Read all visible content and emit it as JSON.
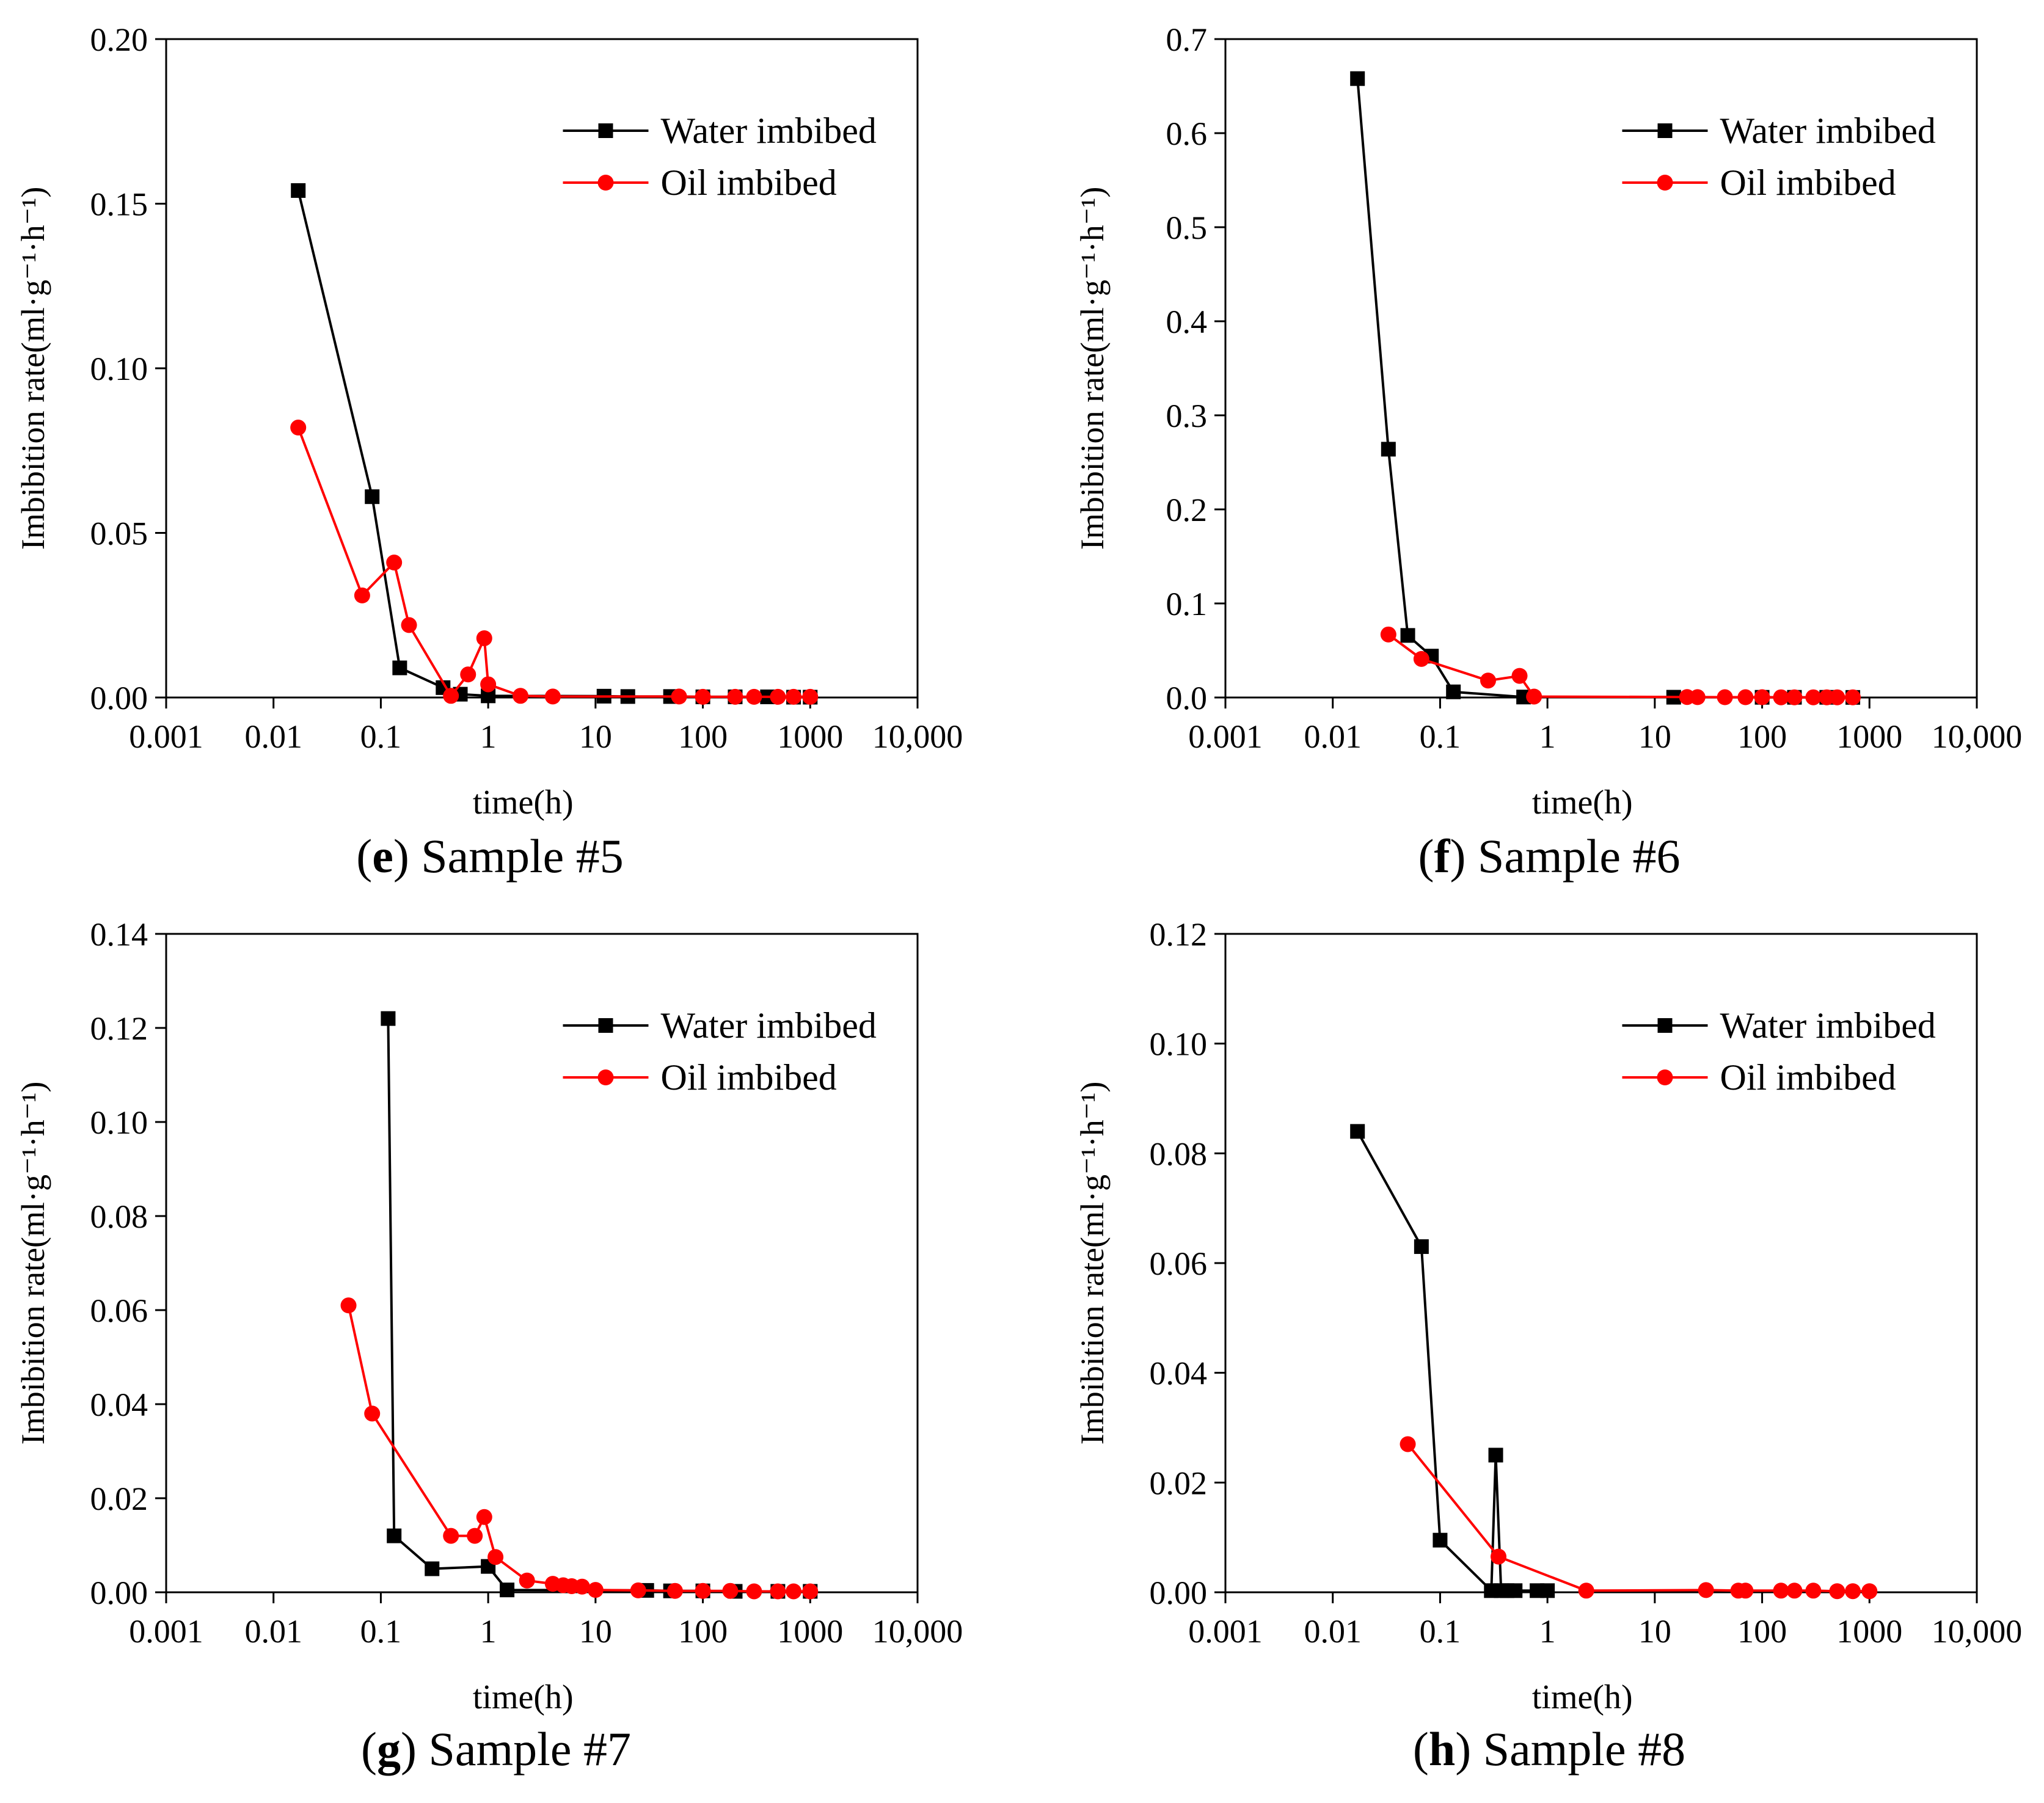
{
  "figure": {
    "colors": {
      "water": "#000000",
      "oil": "#ff0000",
      "axis": "#000000"
    }
  },
  "chart_data": [
    {
      "id": "e",
      "type": "line",
      "caption_letter": "e",
      "caption_text": "Sample #5",
      "xlabel": "time(h)",
      "ylabel": "Imbibition rate(ml·g⁻¹·h⁻¹)",
      "xscale": "log",
      "xlim": [
        0.001,
        10000
      ],
      "ylim": [
        0,
        0.2
      ],
      "xticks": [
        0.001,
        0.01,
        0.1,
        1,
        10,
        100,
        1000,
        10000
      ],
      "xtick_labels": [
        "0.001",
        "0.01",
        "0.1",
        "1",
        "10",
        "100",
        "1000",
        "10,000"
      ],
      "yticks": [
        0,
        0.05,
        0.1,
        0.15,
        0.2
      ],
      "ytick_labels": [
        "0.00",
        "0.05",
        "0.10",
        "0.15",
        "0.20"
      ],
      "legend_position": "top-right",
      "series": [
        {
          "name": "Water imbibed",
          "color": "#000000",
          "marker": "square",
          "x": [
            0.017,
            0.083,
            0.15,
            0.38,
            0.55,
            1.0,
            12,
            20,
            50,
            100,
            200,
            400,
            700,
            1000
          ],
          "y": [
            0.154,
            0.061,
            0.009,
            0.003,
            0.001,
            0.0005,
            0.0004,
            0.0003,
            0.0003,
            0.0002,
            0.0002,
            0.0002,
            0.0001,
            0.0001
          ]
        },
        {
          "name": "Oil imbibed",
          "color": "#ff0000",
          "marker": "circle",
          "x": [
            0.017,
            0.067,
            0.133,
            0.183,
            0.45,
            0.65,
            0.92,
            1.0,
            2.0,
            4.0,
            60,
            100,
            200,
            300,
            500,
            700,
            1000
          ],
          "y": [
            0.082,
            0.031,
            0.041,
            0.022,
            0.0005,
            0.007,
            0.018,
            0.004,
            0.0005,
            0.0003,
            0.0003,
            0.0002,
            0.0002,
            0.0002,
            0.0002,
            0.0002,
            0.0002
          ]
        }
      ]
    },
    {
      "id": "f",
      "type": "line",
      "caption_letter": "f",
      "caption_text": "Sample #6",
      "xlabel": "time(h)",
      "ylabel": "Imbibition rate(ml·g⁻¹·h⁻¹)",
      "xscale": "log",
      "xlim": [
        0.001,
        10000
      ],
      "ylim": [
        0,
        0.7
      ],
      "xticks": [
        0.001,
        0.01,
        0.1,
        1,
        10,
        100,
        1000,
        10000
      ],
      "xtick_labels": [
        "0.001",
        "0.01",
        "0.1",
        "1",
        "10",
        "100",
        "1000",
        "10,000"
      ],
      "yticks": [
        0,
        0.1,
        0.2,
        0.3,
        0.4,
        0.5,
        0.6,
        0.7
      ],
      "ytick_labels": [
        "0.0",
        "0.1",
        "0.2",
        "0.3",
        "0.4",
        "0.5",
        "0.6",
        "0.7"
      ],
      "legend_position": "top-right",
      "series": [
        {
          "name": "Water imbibed",
          "color": "#000000",
          "marker": "square",
          "x": [
            0.017,
            0.033,
            0.05,
            0.083,
            0.133,
            0.6,
            15,
            100,
            200,
            400,
            700
          ],
          "y": [
            0.658,
            0.264,
            0.066,
            0.044,
            0.006,
            0.0005,
            0.0003,
            0.0002,
            0.0002,
            0.0002,
            0.0001
          ]
        },
        {
          "name": "Oil imbibed",
          "color": "#ff0000",
          "marker": "circle",
          "x": [
            0.033,
            0.067,
            0.28,
            0.55,
            0.75,
            20,
            25,
            45,
            70,
            100,
            150,
            200,
            300,
            400,
            500,
            700
          ],
          "y": [
            0.067,
            0.041,
            0.018,
            0.023,
            0.001,
            0.0005,
            0.0004,
            0.0003,
            0.0003,
            0.0003,
            0.0002,
            0.0002,
            0.0002,
            0.0002,
            0.0002,
            0.0002
          ]
        }
      ]
    },
    {
      "id": "g",
      "type": "line",
      "caption_letter": "g",
      "caption_text": "Sample #7",
      "xlabel": "time(h)",
      "ylabel": "Imbibition rate(ml·g⁻¹·h⁻¹)",
      "xscale": "log",
      "xlim": [
        0.001,
        10000
      ],
      "ylim": [
        0,
        0.14
      ],
      "xticks": [
        0.001,
        0.01,
        0.1,
        1,
        10,
        100,
        1000,
        10000
      ],
      "xtick_labels": [
        "0.001",
        "0.01",
        "0.1",
        "1",
        "10",
        "100",
        "1000",
        "10,000"
      ],
      "yticks": [
        0,
        0.02,
        0.04,
        0.06,
        0.08,
        0.1,
        0.12,
        0.14
      ],
      "ytick_labels": [
        "0.00",
        "0.02",
        "0.04",
        "0.06",
        "0.08",
        "0.10",
        "0.12",
        "0.14"
      ],
      "legend_position": "top-right",
      "series": [
        {
          "name": "Water imbibed",
          "color": "#000000",
          "marker": "square",
          "x": [
            0.117,
            0.133,
            0.3,
            1.0,
            1.5,
            30,
            50,
            100,
            200,
            500,
            1000
          ],
          "y": [
            0.122,
            0.012,
            0.005,
            0.0055,
            0.0005,
            0.0004,
            0.0003,
            0.0003,
            0.0002,
            0.0002,
            0.0002
          ]
        },
        {
          "name": "Oil imbibed",
          "color": "#ff0000",
          "marker": "circle",
          "x": [
            0.05,
            0.083,
            0.45,
            0.75,
            0.92,
            1.17,
            2.3,
            4.0,
            5.0,
            6.0,
            7.5,
            10,
            25,
            55,
            100,
            180,
            300,
            500,
            700,
            1000
          ],
          "y": [
            0.061,
            0.038,
            0.012,
            0.012,
            0.016,
            0.0075,
            0.0025,
            0.0018,
            0.0015,
            0.0013,
            0.0012,
            0.0005,
            0.0004,
            0.0003,
            0.0003,
            0.0003,
            0.0002,
            0.0002,
            0.0002,
            0.0002
          ]
        }
      ]
    },
    {
      "id": "h",
      "type": "line",
      "caption_letter": "h",
      "caption_text": "Sample #8",
      "xlabel": "time(h)",
      "ylabel": "Imbibition rate(ml·g⁻¹·h⁻¹)",
      "xscale": "log",
      "xlim": [
        0.001,
        10000
      ],
      "ylim": [
        0,
        0.12
      ],
      "xticks": [
        0.001,
        0.01,
        0.1,
        1,
        10,
        100,
        1000,
        10000
      ],
      "xtick_labels": [
        "0.001",
        "0.01",
        "0.1",
        "1",
        "10",
        "100",
        "1000",
        "10,000"
      ],
      "yticks": [
        0,
        0.02,
        0.04,
        0.06,
        0.08,
        0.1,
        0.12
      ],
      "ytick_labels": [
        "0.00",
        "0.02",
        "0.04",
        "0.06",
        "0.08",
        "0.10",
        "0.12"
      ],
      "legend_position": "top-right",
      "series": [
        {
          "name": "Water imbibed",
          "color": "#000000",
          "marker": "square",
          "x": [
            0.017,
            0.067,
            0.1,
            0.3,
            0.33,
            0.37,
            0.42,
            0.5,
            0.8,
            1.0
          ],
          "y": [
            0.084,
            0.063,
            0.0095,
            0.0003,
            0.025,
            0.0003,
            0.0003,
            0.0003,
            0.0003,
            0.0003
          ]
        },
        {
          "name": "Oil imbibed",
          "color": "#ff0000",
          "marker": "circle",
          "x": [
            0.05,
            0.35,
            2.3,
            30,
            60,
            70,
            150,
            200,
            300,
            500,
            700,
            1000
          ],
          "y": [
            0.027,
            0.0065,
            0.0003,
            0.0004,
            0.0003,
            0.0003,
            0.0003,
            0.0003,
            0.0003,
            0.0002,
            0.0002,
            0.0002
          ]
        }
      ]
    }
  ]
}
